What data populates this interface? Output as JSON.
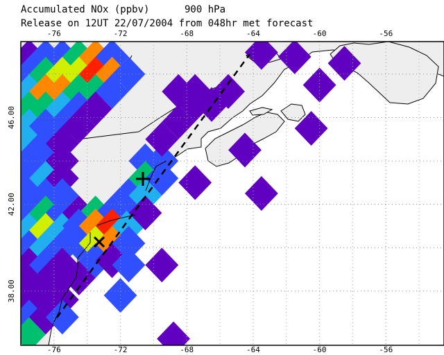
{
  "title": {
    "line1": "Accumulated NOx (ppbv)      900 hPa",
    "line2": "Release on 12UT 22/07/2004 from 048hr met forecast"
  },
  "axes": {
    "lon_ticks": [
      "-76",
      "-72",
      "-68",
      "-64",
      "-60",
      "-56"
    ],
    "lat_ticks": [
      "46.00",
      "42.00",
      "38.00"
    ],
    "lon_range": [
      -78,
      -52.5
    ],
    "lat_range": [
      35.5,
      49.5
    ],
    "grid": true
  },
  "colors": {
    "land": "#eeeeee",
    "sea": "#ffffff",
    "scale": [
      "#6000c0",
      "#3050ff",
      "#20b0f0",
      "#00c070",
      "#d0f000",
      "#ff8800",
      "#ff2000"
    ]
  },
  "markers": [
    {
      "symbol": "+",
      "name": "release-start"
    },
    {
      "symbol": "x",
      "name": "release-end"
    }
  ]
}
